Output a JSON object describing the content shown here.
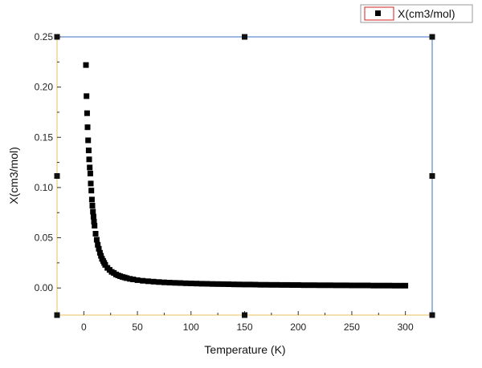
{
  "chart_data": {
    "type": "scatter",
    "xlabel": "Temperature (K)",
    "ylabel": "X(cm3/mol)",
    "xlim": [
      -25,
      325
    ],
    "ylim": [
      -0.027,
      0.25
    ],
    "x_ticks": [
      "0",
      "50",
      "100",
      "150",
      "200",
      "250",
      "300"
    ],
    "y_ticks": [
      "0.00",
      "0.05",
      "0.10",
      "0.15",
      "0.20",
      "0.25"
    ],
    "grid": false,
    "legend": {
      "position": "top-right",
      "label": "X(cm3/mol)"
    },
    "colors": {
      "marker": "#000000",
      "frame_top_right": "#3a6fc4",
      "frame_bottom_left": "#e8c25a",
      "legend_border": "#d11f1f"
    },
    "series": [
      {
        "name": "X(cm3/mol)",
        "x": [
          2,
          2.5,
          3,
          3.5,
          4,
          4.5,
          5,
          5.5,
          6,
          6.5,
          7,
          7.5,
          8,
          8.5,
          9,
          9.5,
          10,
          11,
          12,
          13,
          14,
          15,
          16,
          17,
          18,
          19,
          20,
          22,
          24,
          26,
          28,
          30,
          32,
          34,
          36,
          38,
          40,
          43,
          46,
          50,
          55,
          60,
          65,
          70,
          75,
          80,
          85,
          90,
          95,
          100,
          105,
          110,
          115,
          120,
          125,
          130,
          135,
          140,
          145,
          150,
          155,
          160,
          165,
          170,
          175,
          180,
          185,
          190,
          195,
          200,
          205,
          210,
          215,
          220,
          225,
          230,
          235,
          240,
          245,
          250,
          255,
          260,
          265,
          270,
          275,
          280,
          285,
          290,
          295,
          300
        ],
        "y": [
          0.222,
          0.191,
          0.174,
          0.16,
          0.147,
          0.137,
          0.128,
          0.12,
          0.114,
          0.104,
          0.097,
          0.088,
          0.082,
          0.076,
          0.071,
          0.066,
          0.062,
          0.054,
          0.048,
          0.043,
          0.039,
          0.035,
          0.032,
          0.029,
          0.027,
          0.025,
          0.023,
          0.02,
          0.018,
          0.016,
          0.015,
          0.0135,
          0.0125,
          0.0117,
          0.011,
          0.0104,
          0.0098,
          0.0091,
          0.0085,
          0.0078,
          0.0072,
          0.0067,
          0.0063,
          0.0059,
          0.0056,
          0.0053,
          0.0051,
          0.0049,
          0.0047,
          0.0045,
          0.0044,
          0.0042,
          0.0041,
          0.004,
          0.0039,
          0.0038,
          0.0037,
          0.0036,
          0.0035,
          0.0034,
          0.0034,
          0.0033,
          0.0032,
          0.0032,
          0.0031,
          0.0031,
          0.003,
          0.003,
          0.0029,
          0.0029,
          0.0028,
          0.0028,
          0.0028,
          0.0027,
          0.0027,
          0.0027,
          0.0026,
          0.0026,
          0.0026,
          0.0025,
          0.0025,
          0.0025,
          0.0025,
          0.0024,
          0.0024,
          0.0024,
          0.0024,
          0.0023,
          0.0023,
          0.0023
        ]
      }
    ]
  }
}
